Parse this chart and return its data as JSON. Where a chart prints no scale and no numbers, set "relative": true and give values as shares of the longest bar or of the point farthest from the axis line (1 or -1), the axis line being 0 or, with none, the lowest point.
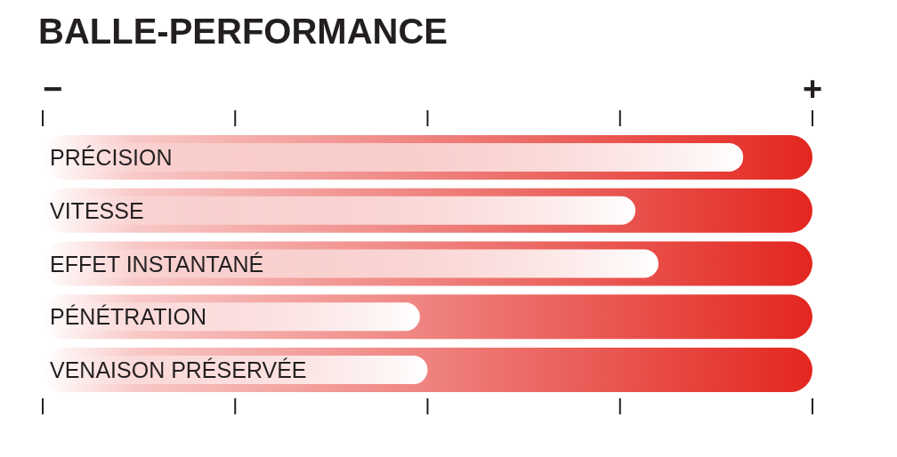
{
  "chart_data": {
    "type": "bar",
    "orientation": "horizontal",
    "relative": true,
    "title": "BALLE-PERFORMANCE",
    "categories": [
      "PRÉCISION",
      "VITESSE",
      "EFFET INSTANTANÉ",
      "PÉNÉTRATION",
      "VENAISON PRÉSERVÉE"
    ],
    "series": [
      {
        "color": "#e3261f",
        "values": [
          1,
          1,
          1,
          1,
          1
        ]
      },
      {
        "color": "#ffffff",
        "values": [
          0.91,
          0.77,
          0.8,
          0.49,
          0.5
        ]
      }
    ],
    "annotations": [
      "−",
      "+"
    ]
  }
}
